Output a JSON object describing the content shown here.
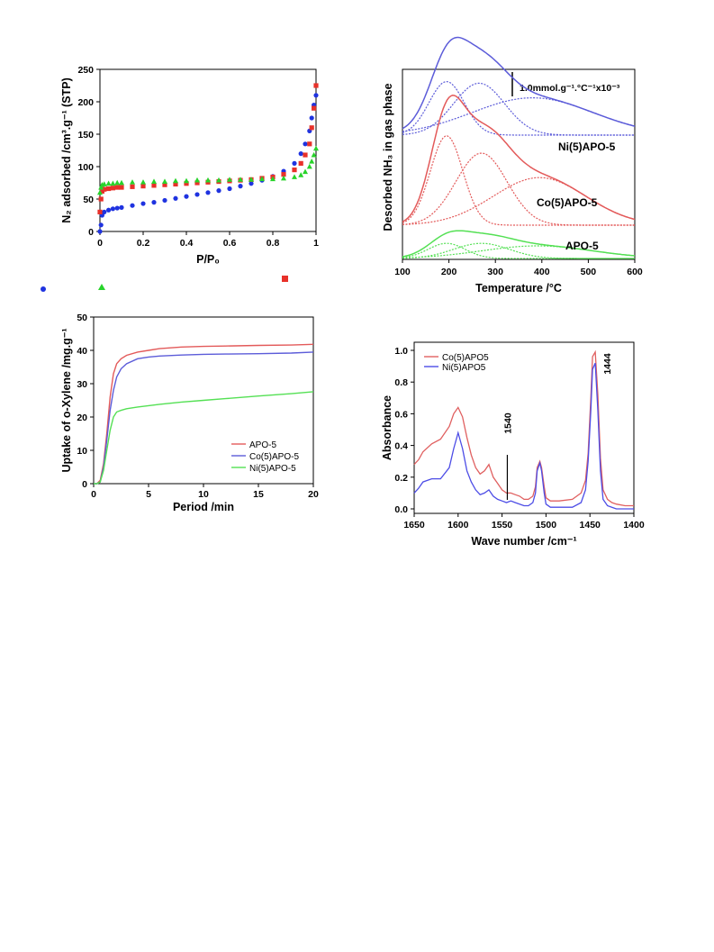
{
  "colors": {
    "red": "#e8312a",
    "blue": "#1f33e0",
    "green": "#27d32a",
    "red_line": "#e35a5a",
    "blue_line": "#5c5cd9",
    "green_line": "#54e054",
    "ir_red": "#e06060",
    "ir_blue": "#4d4de6"
  },
  "chart_data": [
    {
      "type": "scatter",
      "xlabel": "P/P₀",
      "ylabel": "N₂ adsorbed /cm³.g⁻¹ (STP)",
      "xlim": [
        0,
        1
      ],
      "ylim": [
        0,
        250
      ],
      "xticks": [
        "0",
        "0.2",
        "0.4",
        "0.6",
        "0.8",
        "1"
      ],
      "yticks": [
        "0",
        "50",
        "100",
        "150",
        "200",
        "250"
      ],
      "series": [
        {
          "marker": "circle",
          "color": "blue",
          "x": [
            0,
            0.005,
            0.01,
            0.02,
            0.04,
            0.06,
            0.08,
            0.1,
            0.15,
            0.2,
            0.25,
            0.3,
            0.35,
            0.4,
            0.45,
            0.5,
            0.55,
            0.6,
            0.65,
            0.7,
            0.75,
            0.8,
            0.85,
            0.9,
            0.93,
            0.95,
            0.97,
            0.98,
            0.99,
            1.0
          ],
          "y": [
            0,
            10,
            25,
            30,
            33,
            35,
            36,
            37,
            40,
            43,
            45,
            48,
            51,
            54,
            57,
            60,
            63,
            66,
            70,
            74,
            79,
            85,
            93,
            105,
            120,
            135,
            155,
            175,
            195,
            210
          ]
        },
        {
          "marker": "square",
          "color": "red",
          "x": [
            0,
            0.005,
            0.01,
            0.02,
            0.04,
            0.06,
            0.08,
            0.1,
            0.15,
            0.2,
            0.25,
            0.3,
            0.35,
            0.4,
            0.45,
            0.5,
            0.55,
            0.6,
            0.65,
            0.7,
            0.75,
            0.8,
            0.85,
            0.9,
            0.93,
            0.95,
            0.97,
            0.98,
            0.99,
            1.0
          ],
          "y": [
            30,
            50,
            62,
            65,
            66,
            67,
            68,
            68,
            69,
            70,
            71,
            72,
            73,
            74,
            75,
            76,
            77,
            78,
            79,
            80,
            82,
            84,
            88,
            95,
            105,
            118,
            135,
            160,
            190,
            225
          ]
        },
        {
          "marker": "triangle",
          "color": "green",
          "x": [
            0,
            0.005,
            0.01,
            0.02,
            0.04,
            0.06,
            0.08,
            0.1,
            0.15,
            0.2,
            0.25,
            0.3,
            0.35,
            0.4,
            0.45,
            0.5,
            0.55,
            0.6,
            0.65,
            0.7,
            0.75,
            0.8,
            0.85,
            0.9,
            0.93,
            0.95,
            0.97,
            0.98,
            0.99,
            1.0
          ],
          "y": [
            60,
            68,
            72,
            73,
            74,
            74,
            75,
            75,
            76,
            76,
            77,
            77,
            78,
            78,
            79,
            79,
            79,
            80,
            80,
            80,
            81,
            81,
            82,
            84,
            87,
            92,
            100,
            108,
            118,
            128
          ]
        }
      ]
    },
    {
      "type": "line",
      "xlabel": "Temperature /°C",
      "ylabel": "Desorbed NH₃  in gas phase",
      "xlim": [
        100,
        600
      ],
      "xticks": [
        "100",
        "200",
        "300",
        "400",
        "500",
        "600"
      ],
      "scale_bar": "1.0mmol.g⁻¹.°C⁻¹x10⁻³",
      "annotations": [
        "Ni(5)APO-5",
        "Co(5)APO-5",
        "APO-5"
      ],
      "groups": [
        {
          "color": "blue_line",
          "baseline": 0,
          "peaks": [
            {
              "center": 195,
              "height": 0.33,
              "width": 38
            },
            {
              "center": 265,
              "height": 0.32,
              "width": 55
            },
            {
              "center": 380,
              "height": 0.23,
              "width": 130
            }
          ]
        },
        {
          "color": "red_line",
          "baseline": 0,
          "peaks": [
            {
              "center": 195,
              "height": 0.62,
              "width": 35
            },
            {
              "center": 270,
              "height": 0.5,
              "width": 55
            },
            {
              "center": 395,
              "height": 0.33,
              "width": 100
            }
          ]
        },
        {
          "color": "green_line",
          "baseline": 0,
          "peaks": [
            {
              "center": 195,
              "height": 0.06,
              "width": 40
            },
            {
              "center": 270,
              "height": 0.06,
              "width": 60
            },
            {
              "center": 390,
              "height": 0.05,
              "width": 120
            }
          ]
        }
      ]
    },
    {
      "type": "line",
      "xlabel": "Period /min",
      "ylabel": "Uptake of o-Xylene /mg.g⁻¹",
      "xlim": [
        0,
        20
      ],
      "ylim": [
        0,
        50
      ],
      "xticks": [
        "0",
        "5",
        "10",
        "15",
        "20"
      ],
      "yticks": [
        "0",
        "10",
        "20",
        "30",
        "40",
        "50"
      ],
      "series": [
        {
          "name": "APO-5",
          "color": "red",
          "x": [
            0,
            0.3,
            0.6,
            0.9,
            1.2,
            1.5,
            1.8,
            2.1,
            2.5,
            3,
            4,
            5,
            6,
            8,
            10,
            12,
            15,
            18,
            20
          ],
          "y": [
            0,
            0,
            1,
            6,
            15,
            26,
            33,
            36,
            37.5,
            38.5,
            39.5,
            40,
            40.5,
            41,
            41.2,
            41.3,
            41.5,
            41.6,
            41.8
          ]
        },
        {
          "name": "Co(5)APO-5",
          "color": "blue",
          "x": [
            0,
            0.3,
            0.6,
            0.9,
            1.2,
            1.5,
            1.8,
            2.1,
            2.5,
            3,
            4,
            5,
            6,
            8,
            10,
            12,
            15,
            18,
            20
          ],
          "y": [
            0,
            0,
            0.5,
            5,
            13,
            22,
            28,
            32,
            34.5,
            36,
            37.5,
            38,
            38.3,
            38.6,
            38.8,
            38.9,
            39,
            39.2,
            39.5
          ]
        },
        {
          "name": "Ni(5)APO-5",
          "color": "green",
          "x": [
            0,
            0.3,
            0.6,
            0.9,
            1.2,
            1.5,
            1.8,
            2.1,
            2.5,
            3,
            4,
            5,
            6,
            8,
            10,
            12,
            15,
            18,
            20
          ],
          "y": [
            0,
            0,
            0.5,
            4,
            10,
            16,
            20,
            21.5,
            22,
            22.5,
            23,
            23.4,
            23.8,
            24.5,
            25,
            25.5,
            26.3,
            27,
            27.6
          ]
        }
      ]
    },
    {
      "type": "line",
      "xlabel": "Wave number /cm⁻¹",
      "ylabel": "Absorbance",
      "xlim": [
        1650,
        1400
      ],
      "ylim": [
        0,
        1.0
      ],
      "xticks": [
        "1650",
        "1600",
        "1550",
        "1500",
        "1450",
        "1400"
      ],
      "yticks": [
        "0.0",
        "0.2",
        "0.4",
        "0.6",
        "0.8",
        "1.0"
      ],
      "annotations": [
        "1540",
        "1444"
      ],
      "series": [
        {
          "name": "Co(5)APO5",
          "color": "ir_red",
          "x": [
            1650,
            1645,
            1640,
            1630,
            1620,
            1610,
            1605,
            1600,
            1595,
            1590,
            1585,
            1580,
            1575,
            1570,
            1565,
            1560,
            1555,
            1550,
            1545,
            1540,
            1535,
            1530,
            1525,
            1520,
            1515,
            1512,
            1510,
            1507,
            1505,
            1502,
            1500,
            1495,
            1490,
            1485,
            1470,
            1460,
            1455,
            1452,
            1449,
            1447,
            1444,
            1441,
            1438,
            1435,
            1430,
            1425,
            1420,
            1410,
            1400
          ],
          "y": [
            0.28,
            0.31,
            0.36,
            0.41,
            0.44,
            0.52,
            0.6,
            0.64,
            0.58,
            0.45,
            0.34,
            0.26,
            0.22,
            0.24,
            0.28,
            0.2,
            0.16,
            0.12,
            0.1,
            0.1,
            0.09,
            0.08,
            0.06,
            0.06,
            0.08,
            0.14,
            0.26,
            0.3,
            0.26,
            0.14,
            0.07,
            0.05,
            0.05,
            0.05,
            0.06,
            0.1,
            0.18,
            0.35,
            0.7,
            0.96,
            0.99,
            0.72,
            0.32,
            0.12,
            0.06,
            0.04,
            0.03,
            0.02,
            0.02
          ]
        },
        {
          "name": "Ni(5)APO5",
          "color": "ir_blue",
          "x": [
            1650,
            1645,
            1640,
            1630,
            1620,
            1610,
            1605,
            1600,
            1595,
            1590,
            1585,
            1580,
            1575,
            1570,
            1565,
            1560,
            1555,
            1550,
            1545,
            1540,
            1535,
            1530,
            1525,
            1520,
            1515,
            1512,
            1510,
            1507,
            1505,
            1502,
            1500,
            1495,
            1490,
            1485,
            1470,
            1460,
            1455,
            1452,
            1449,
            1447,
            1444,
            1441,
            1438,
            1435,
            1430,
            1425,
            1420,
            1410,
            1400
          ],
          "y": [
            0.1,
            0.13,
            0.17,
            0.19,
            0.19,
            0.26,
            0.38,
            0.48,
            0.38,
            0.24,
            0.17,
            0.12,
            0.09,
            0.1,
            0.12,
            0.08,
            0.06,
            0.05,
            0.04,
            0.05,
            0.04,
            0.03,
            0.02,
            0.02,
            0.04,
            0.1,
            0.24,
            0.29,
            0.24,
            0.1,
            0.03,
            0.01,
            0.01,
            0.01,
            0.01,
            0.04,
            0.12,
            0.3,
            0.62,
            0.88,
            0.92,
            0.62,
            0.24,
            0.06,
            0.02,
            0.01,
            0.0,
            0.0,
            0.0
          ]
        }
      ]
    }
  ]
}
